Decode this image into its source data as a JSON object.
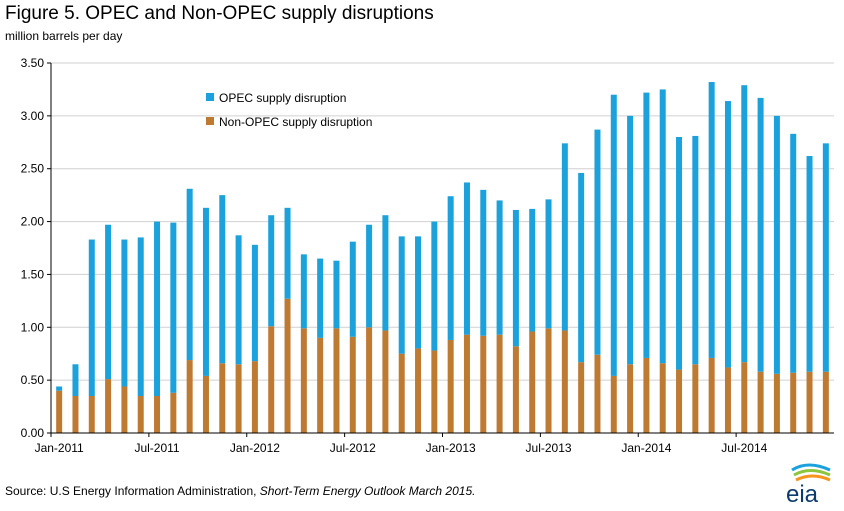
{
  "title": "Figure 5. OPEC and Non-OPEC supply disruptions",
  "units": "million barrels per day",
  "source_prefix": "Source: U.S Energy Information Administration,",
  "source_italic": "Short-Term Energy Outlook March 2015.",
  "logo_text": "eia",
  "colors": {
    "opec": "#1ba1dc",
    "non_opec": "#bf7a32",
    "gridline": "#d0d0d0",
    "axis": "#000000"
  },
  "chart_data": {
    "type": "bar",
    "stacked": true,
    "grid": true,
    "legend_position": "top-center",
    "ylim": [
      0,
      3.5
    ],
    "yticks": [
      "0.00",
      "0.50",
      "1.00",
      "1.50",
      "2.00",
      "2.50",
      "3.00",
      "3.50"
    ],
    "ytick_values": [
      0,
      0.5,
      1.0,
      1.5,
      2.0,
      2.5,
      3.0,
      3.5
    ],
    "xtick_labels": [
      {
        "index": 0,
        "label": "Jan-2011"
      },
      {
        "index": 6,
        "label": "Jul-2011"
      },
      {
        "index": 12,
        "label": "Jan-2012"
      },
      {
        "index": 18,
        "label": "Jul-2012"
      },
      {
        "index": 24,
        "label": "Jan-2013"
      },
      {
        "index": 30,
        "label": "Jul-2013"
      },
      {
        "index": 36,
        "label": "Jan-2014"
      },
      {
        "index": 42,
        "label": "Jul-2014"
      }
    ],
    "categories": [
      "Jan-2011",
      "Feb-2011",
      "Mar-2011",
      "Apr-2011",
      "May-2011",
      "Jun-2011",
      "Jul-2011",
      "Aug-2011",
      "Sep-2011",
      "Oct-2011",
      "Nov-2011",
      "Dec-2011",
      "Jan-2012",
      "Feb-2012",
      "Mar-2012",
      "Apr-2012",
      "May-2012",
      "Jun-2012",
      "Jul-2012",
      "Aug-2012",
      "Sep-2012",
      "Oct-2012",
      "Nov-2012",
      "Dec-2012",
      "Jan-2013",
      "Feb-2013",
      "Mar-2013",
      "Apr-2013",
      "May-2013",
      "Jun-2013",
      "Jul-2013",
      "Aug-2013",
      "Sep-2013",
      "Oct-2013",
      "Nov-2013",
      "Dec-2013",
      "Jan-2014",
      "Feb-2014",
      "Mar-2014",
      "Apr-2014",
      "May-2014",
      "Jun-2014",
      "Jul-2014",
      "Aug-2014",
      "Sep-2014",
      "Oct-2014",
      "Nov-2014",
      "Dec-2014"
    ],
    "series": [
      {
        "name": "OPEC supply disruption",
        "color_key": "opec",
        "values": [
          0.04,
          0.3,
          1.48,
          1.46,
          1.39,
          1.5,
          1.65,
          1.61,
          1.62,
          1.59,
          1.59,
          1.22,
          1.1,
          1.05,
          0.86,
          0.7,
          0.75,
          0.64,
          0.9,
          0.97,
          1.09,
          1.11,
          1.06,
          1.22,
          1.36,
          1.44,
          1.38,
          1.27,
          1.29,
          1.16,
          1.22,
          1.77,
          1.79,
          2.13,
          2.66,
          2.35,
          2.51,
          2.59,
          2.2,
          2.16,
          2.61,
          2.52,
          2.62,
          2.59,
          2.44,
          2.26,
          2.04,
          2.16
        ]
      },
      {
        "name": "Non-OPEC supply disruption",
        "color_key": "non_opec",
        "values": [
          0.4,
          0.35,
          0.35,
          0.51,
          0.44,
          0.35,
          0.35,
          0.38,
          0.69,
          0.54,
          0.66,
          0.65,
          0.68,
          1.01,
          1.27,
          0.99,
          0.9,
          0.99,
          0.91,
          1.0,
          0.97,
          0.75,
          0.8,
          0.78,
          0.88,
          0.93,
          0.92,
          0.93,
          0.82,
          0.96,
          0.99,
          0.97,
          0.67,
          0.74,
          0.54,
          0.65,
          0.71,
          0.66,
          0.6,
          0.65,
          0.71,
          0.62,
          0.67,
          0.58,
          0.56,
          0.57,
          0.58,
          0.58
        ]
      }
    ]
  }
}
